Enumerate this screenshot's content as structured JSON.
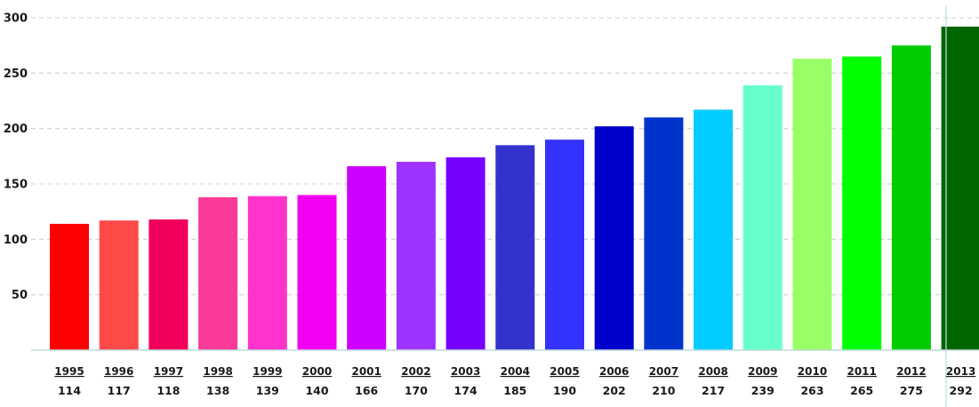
{
  "chart_data": {
    "type": "bar",
    "title": "",
    "xlabel": "",
    "ylabel": "",
    "ylim": [
      0,
      300
    ],
    "yticks": [
      50,
      100,
      150,
      200,
      250,
      300
    ],
    "grid": true,
    "categories": [
      "1995",
      "1996",
      "1997",
      "1998",
      "1999",
      "2000",
      "2001",
      "2002",
      "2003",
      "2004",
      "2005",
      "2006",
      "2007",
      "2008",
      "2009",
      "2010",
      "2011",
      "2012",
      "2013"
    ],
    "values": [
      114,
      117,
      118,
      138,
      139,
      140,
      166,
      170,
      174,
      185,
      190,
      202,
      210,
      217,
      239,
      263,
      265,
      275,
      292
    ],
    "value_labels": [
      "114",
      "117",
      "118",
      "138",
      "139",
      "140",
      "166",
      "170",
      "174",
      "185",
      "190",
      "202",
      "210",
      "217",
      "239",
      "263",
      "265",
      "275",
      "292"
    ],
    "colors": [
      "#ff0000",
      "#ff4a4a",
      "#f0005a",
      "#fa3a96",
      "#ff33cc",
      "#f200f2",
      "#cc00ff",
      "#9e33ff",
      "#7700ff",
      "#3333cc",
      "#3333ff",
      "#0000cc",
      "#0033cc",
      "#00ccff",
      "#66ffcc",
      "#99ff66",
      "#00ff00",
      "#00cc00",
      "#006600"
    ]
  }
}
